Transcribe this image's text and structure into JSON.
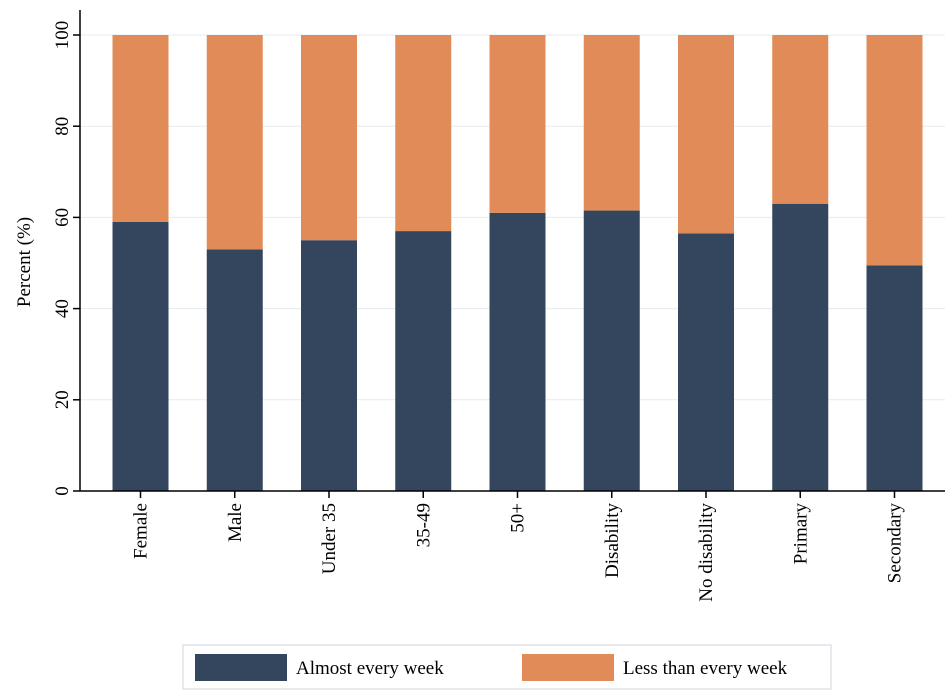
{
  "chart_data": {
    "type": "bar",
    "stacked": true,
    "title": "",
    "xlabel": "",
    "ylabel": "Percent (%)",
    "ylim": [
      0,
      100
    ],
    "yticks": [
      0,
      20,
      40,
      60,
      80,
      100
    ],
    "grid": true,
    "legend_position": "bottom",
    "categories": [
      "Female",
      "Male",
      "Under 35",
      "35-49",
      "50+",
      "Disability",
      "No disability",
      "Primary",
      "Secondary"
    ],
    "series": [
      {
        "name": "Almost every week",
        "color": "#33465e",
        "values": [
          59,
          53,
          55,
          57,
          61,
          61.5,
          56.5,
          63,
          49.5
        ]
      },
      {
        "name": "Less than every week",
        "color": "#e08b58",
        "values": [
          41,
          47,
          45,
          43,
          39,
          38.5,
          43.5,
          37,
          50.5
        ]
      }
    ]
  }
}
